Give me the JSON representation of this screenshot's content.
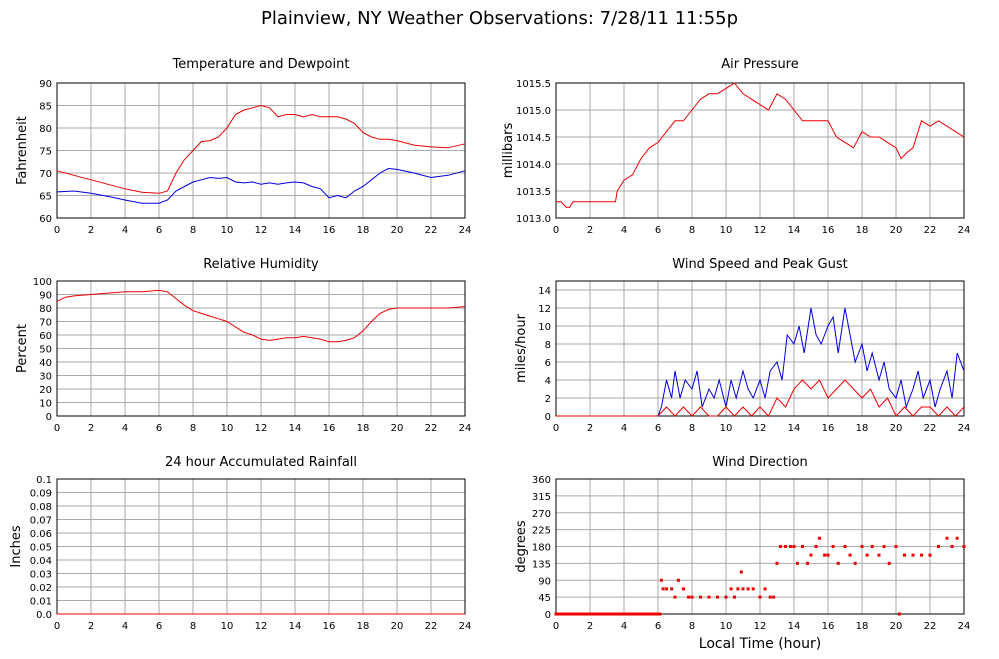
{
  "title": "Plainview, NY Weather Observations: 7/28/11 11:55p",
  "xlabel": "Local Time (hour)",
  "colors": {
    "red": "#ee0000",
    "blue": "#0000dd",
    "grid": "#aaaaaa"
  },
  "chart_data": [
    {
      "id": "temperature",
      "type": "line",
      "title": "Temperature and Dewpoint",
      "ylabel": "Fahrenheit",
      "xlim": [
        0,
        24
      ],
      "ylim": [
        60,
        90
      ],
      "xticks": [
        0,
        2,
        4,
        6,
        8,
        10,
        12,
        14,
        16,
        18,
        20,
        22,
        24
      ],
      "yticks": [
        60,
        65,
        70,
        75,
        80,
        85,
        90
      ],
      "grid": true,
      "series": [
        {
          "color": "#ee0000",
          "x": [
            0,
            1,
            2,
            3,
            4,
            5,
            6,
            6.5,
            7,
            7.5,
            8,
            8.5,
            9,
            9.5,
            10,
            10.5,
            11,
            11.5,
            12,
            12.5,
            13,
            13.5,
            14,
            14.5,
            15,
            15.5,
            16,
            16.5,
            17,
            17.5,
            18,
            18.5,
            19,
            19.5,
            20,
            21,
            22,
            23,
            24
          ],
          "y": [
            70.5,
            69.5,
            68.5,
            67.5,
            66.5,
            65.7,
            65.5,
            66,
            70,
            73,
            75,
            77,
            77.2,
            78,
            80,
            83,
            84,
            84.5,
            85,
            84.5,
            82.5,
            83,
            83,
            82.5,
            83,
            82.5,
            82.5,
            82.5,
            82,
            81,
            79,
            78,
            77.5,
            77.5,
            77.2,
            76.2,
            75.8,
            75.6,
            76.5
          ]
        },
        {
          "color": "#0000dd",
          "x": [
            0,
            1,
            2,
            3,
            4,
            5,
            6,
            6.5,
            7,
            7.5,
            8,
            8.5,
            9,
            9.5,
            10,
            10.5,
            11,
            11.5,
            12,
            12.5,
            13,
            13.5,
            14,
            14.5,
            15,
            15.5,
            16,
            16.5,
            17,
            17.5,
            18,
            18.5,
            19,
            19.5,
            20,
            21,
            22,
            23,
            24
          ],
          "y": [
            65.8,
            66,
            65.5,
            64.8,
            64,
            63.3,
            63.3,
            64,
            66,
            67,
            68,
            68.5,
            69,
            68.8,
            69,
            68,
            67.8,
            68,
            67.5,
            67.8,
            67.5,
            67.8,
            68,
            67.8,
            67,
            66.5,
            64.5,
            65,
            64.5,
            66,
            67,
            68.5,
            70,
            71,
            70.8,
            70,
            69,
            69.5,
            70.5
          ]
        }
      ]
    },
    {
      "id": "pressure",
      "type": "line",
      "title": "Air Pressure",
      "ylabel": "millibars",
      "xlim": [
        0,
        24
      ],
      "ylim": [
        1013.0,
        1015.5
      ],
      "xticks": [
        0,
        2,
        4,
        6,
        8,
        10,
        12,
        14,
        16,
        18,
        20,
        22,
        24
      ],
      "yticks": [
        1013.0,
        1013.5,
        1014.0,
        1014.5,
        1015.0,
        1015.5
      ],
      "ytick_labels": [
        "1013.0",
        "1013.5",
        "1014.0",
        "1014.5",
        "1015.0",
        "1015.5"
      ],
      "grid": true,
      "series": [
        {
          "color": "#ee0000",
          "x": [
            0,
            0.3,
            0.6,
            0.8,
            1,
            3.5,
            3.6,
            4,
            4.5,
            5,
            5.5,
            6,
            6.5,
            7,
            7.5,
            8,
            8.5,
            9,
            9.5,
            10,
            10.5,
            11,
            11.5,
            12,
            12.5,
            13,
            13.5,
            14,
            14.5,
            15,
            15.5,
            16,
            16.5,
            17,
            17.5,
            18,
            18.5,
            19,
            19.5,
            20,
            20.3,
            20.6,
            21,
            21.5,
            22,
            22.5,
            23,
            23.5,
            24
          ],
          "y": [
            1013.3,
            1013.3,
            1013.2,
            1013.2,
            1013.3,
            1013.3,
            1013.5,
            1013.7,
            1013.8,
            1014.1,
            1014.3,
            1014.4,
            1014.6,
            1014.8,
            1014.8,
            1015.0,
            1015.2,
            1015.3,
            1015.3,
            1015.4,
            1015.5,
            1015.3,
            1015.2,
            1015.1,
            1015.0,
            1015.3,
            1015.2,
            1015.0,
            1014.8,
            1014.8,
            1014.8,
            1014.8,
            1014.5,
            1014.4,
            1014.3,
            1014.6,
            1014.5,
            1014.5,
            1014.4,
            1014.3,
            1014.1,
            1014.2,
            1014.3,
            1014.8,
            1014.7,
            1014.8,
            1014.7,
            1014.6,
            1014.5
          ]
        }
      ]
    },
    {
      "id": "humidity",
      "type": "line",
      "title": "Relative Humidity",
      "ylabel": "Percent",
      "xlim": [
        0,
        24
      ],
      "ylim": [
        0,
        100
      ],
      "xticks": [
        0,
        2,
        4,
        6,
        8,
        10,
        12,
        14,
        16,
        18,
        20,
        22,
        24
      ],
      "yticks": [
        0,
        10,
        20,
        30,
        40,
        50,
        60,
        70,
        80,
        90,
        100
      ],
      "grid": true,
      "series": [
        {
          "color": "#ee0000",
          "x": [
            0,
            0.5,
            1,
            2,
            3,
            4,
            5,
            6,
            6.5,
            7,
            7.5,
            8,
            8.5,
            9,
            9.5,
            10,
            10.5,
            11,
            11.5,
            12,
            12.5,
            13,
            13.5,
            14,
            14.5,
            15,
            15.5,
            16,
            16.5,
            17,
            17.5,
            18,
            18.5,
            19,
            19.5,
            20,
            21,
            22,
            23,
            24
          ],
          "y": [
            85,
            88,
            89,
            90,
            91,
            92,
            92,
            93,
            92,
            87,
            82,
            78,
            76,
            74,
            72,
            70,
            66,
            62,
            60,
            57,
            56,
            57,
            58,
            58,
            59,
            58,
            57,
            55,
            55,
            56,
            58,
            63,
            70,
            76,
            79,
            80,
            80,
            80,
            80,
            81
          ]
        }
      ]
    },
    {
      "id": "wind-speed",
      "type": "line",
      "title": "Wind Speed and Peak Gust",
      "ylabel": "miles/hour",
      "xlim": [
        0,
        24
      ],
      "ylim": [
        0,
        15
      ],
      "xticks": [
        0,
        2,
        4,
        6,
        8,
        10,
        12,
        14,
        16,
        18,
        20,
        22,
        24
      ],
      "yticks": [
        0,
        2,
        4,
        6,
        8,
        10,
        12,
        14
      ],
      "grid": true,
      "series": [
        {
          "color": "#0000dd",
          "x": [
            0,
            6,
            6.2,
            6.5,
            6.8,
            7,
            7.3,
            7.6,
            8,
            8.3,
            8.6,
            9,
            9.3,
            9.6,
            10,
            10.3,
            10.6,
            11,
            11.3,
            11.6,
            12,
            12.3,
            12.6,
            13,
            13.3,
            13.6,
            14,
            14.3,
            14.6,
            15,
            15.3,
            15.6,
            16,
            16.3,
            16.6,
            17,
            17.3,
            17.6,
            18,
            18.3,
            18.6,
            19,
            19.3,
            19.6,
            20,
            20.3,
            20.6,
            21,
            21.3,
            21.6,
            22,
            22.3,
            22.6,
            23,
            23.3,
            23.6,
            24
          ],
          "y": [
            0,
            0,
            1,
            4,
            2,
            5,
            2,
            4,
            3,
            5,
            1,
            3,
            2,
            4,
            1,
            4,
            2,
            5,
            3,
            2,
            4,
            2,
            5,
            6,
            4,
            9,
            8,
            10,
            7,
            12,
            9,
            8,
            10,
            11,
            7,
            12,
            9,
            6,
            8,
            5,
            7,
            4,
            6,
            3,
            2,
            4,
            1,
            3,
            5,
            2,
            4,
            1,
            3,
            5,
            2,
            7,
            5
          ]
        },
        {
          "color": "#ee0000",
          "x": [
            0,
            6,
            6.5,
            7,
            7.5,
            8,
            8.5,
            9,
            9.5,
            10,
            10.5,
            11,
            11.5,
            12,
            12.5,
            13,
            13.5,
            14,
            14.5,
            15,
            15.5,
            16,
            16.5,
            17,
            17.5,
            18,
            18.5,
            19,
            19.5,
            20,
            20.5,
            21,
            21.5,
            22,
            22.5,
            23,
            23.5,
            24
          ],
          "y": [
            0,
            0,
            1,
            0,
            1,
            0,
            1,
            0,
            0,
            1,
            0,
            1,
            0,
            1,
            0,
            2,
            1,
            3,
            4,
            3,
            4,
            2,
            3,
            4,
            3,
            2,
            3,
            1,
            2,
            0,
            1,
            0,
            1,
            1,
            0,
            1,
            0,
            1
          ]
        }
      ]
    },
    {
      "id": "rainfall",
      "type": "line",
      "title": "24 hour Accumulated Rainfall",
      "ylabel": "Inches",
      "xlim": [
        0,
        24
      ],
      "ylim": [
        0,
        0.1
      ],
      "xticks": [
        0,
        2,
        4,
        6,
        8,
        10,
        12,
        14,
        16,
        18,
        20,
        22,
        24
      ],
      "yticks": [
        0,
        0.01,
        0.02,
        0.03,
        0.04,
        0.05,
        0.06,
        0.07,
        0.08,
        0.09,
        0.1
      ],
      "ytick_labels": [
        "0.0",
        "0.01",
        "0.02",
        "0.03",
        "0.04",
        "0.05",
        "0.06",
        "0.07",
        "0.08",
        "0.09",
        "0.1"
      ],
      "grid": true,
      "series": [
        {
          "color": "#ee0000",
          "x": [
            0,
            24
          ],
          "y": [
            0,
            0
          ]
        }
      ]
    },
    {
      "id": "wind-direction",
      "type": "scatter",
      "title": "Wind Direction",
      "ylabel": "degrees",
      "xlim": [
        0,
        24
      ],
      "ylim": [
        0,
        360
      ],
      "xticks": [
        0,
        2,
        4,
        6,
        8,
        10,
        12,
        14,
        16,
        18,
        20,
        22,
        24
      ],
      "yticks": [
        0,
        45,
        90,
        135,
        180,
        225,
        270,
        315,
        360
      ],
      "grid": true,
      "series": [
        {
          "color": "#ee0000",
          "x": [
            0,
            0.5,
            1,
            1.5,
            2,
            2.5,
            3,
            3.5,
            4,
            4.5,
            5,
            5.5,
            6,
            6.2,
            6.3,
            6.5,
            6.8,
            7,
            7.2,
            7.5,
            7.8,
            8,
            8.5,
            9,
            9.5,
            10,
            10.3,
            10.5,
            10.7,
            10.9,
            11,
            11.3,
            11.6,
            12,
            12.3,
            12.6,
            12.8,
            13,
            13.2,
            13.5,
            13.8,
            14,
            14.2,
            14.5,
            14.8,
            15,
            15.3,
            15.5,
            15.8,
            16,
            16.3,
            16.6,
            17,
            17.3,
            17.6,
            18,
            18.3,
            18.6,
            19,
            19.3,
            19.6,
            20,
            20.2,
            20.5,
            21,
            21.5,
            22,
            22.5,
            23,
            23.3,
            23.6,
            24
          ],
          "y": [
            0,
            0,
            0,
            0,
            0,
            0,
            0,
            0,
            0,
            0,
            0,
            0,
            0,
            90,
            67,
            67,
            67,
            45,
            90,
            67,
            45,
            45,
            45,
            45,
            45,
            45,
            67,
            45,
            67,
            112,
            67,
            67,
            67,
            45,
            67,
            45,
            45,
            135,
            180,
            180,
            180,
            180,
            135,
            180,
            135,
            157,
            180,
            202,
            157,
            157,
            180,
            135,
            180,
            157,
            135,
            180,
            157,
            180,
            157,
            180,
            135,
            180,
            0,
            157,
            157,
            157,
            157,
            180,
            202,
            180,
            202,
            180
          ]
        }
      ]
    }
  ]
}
